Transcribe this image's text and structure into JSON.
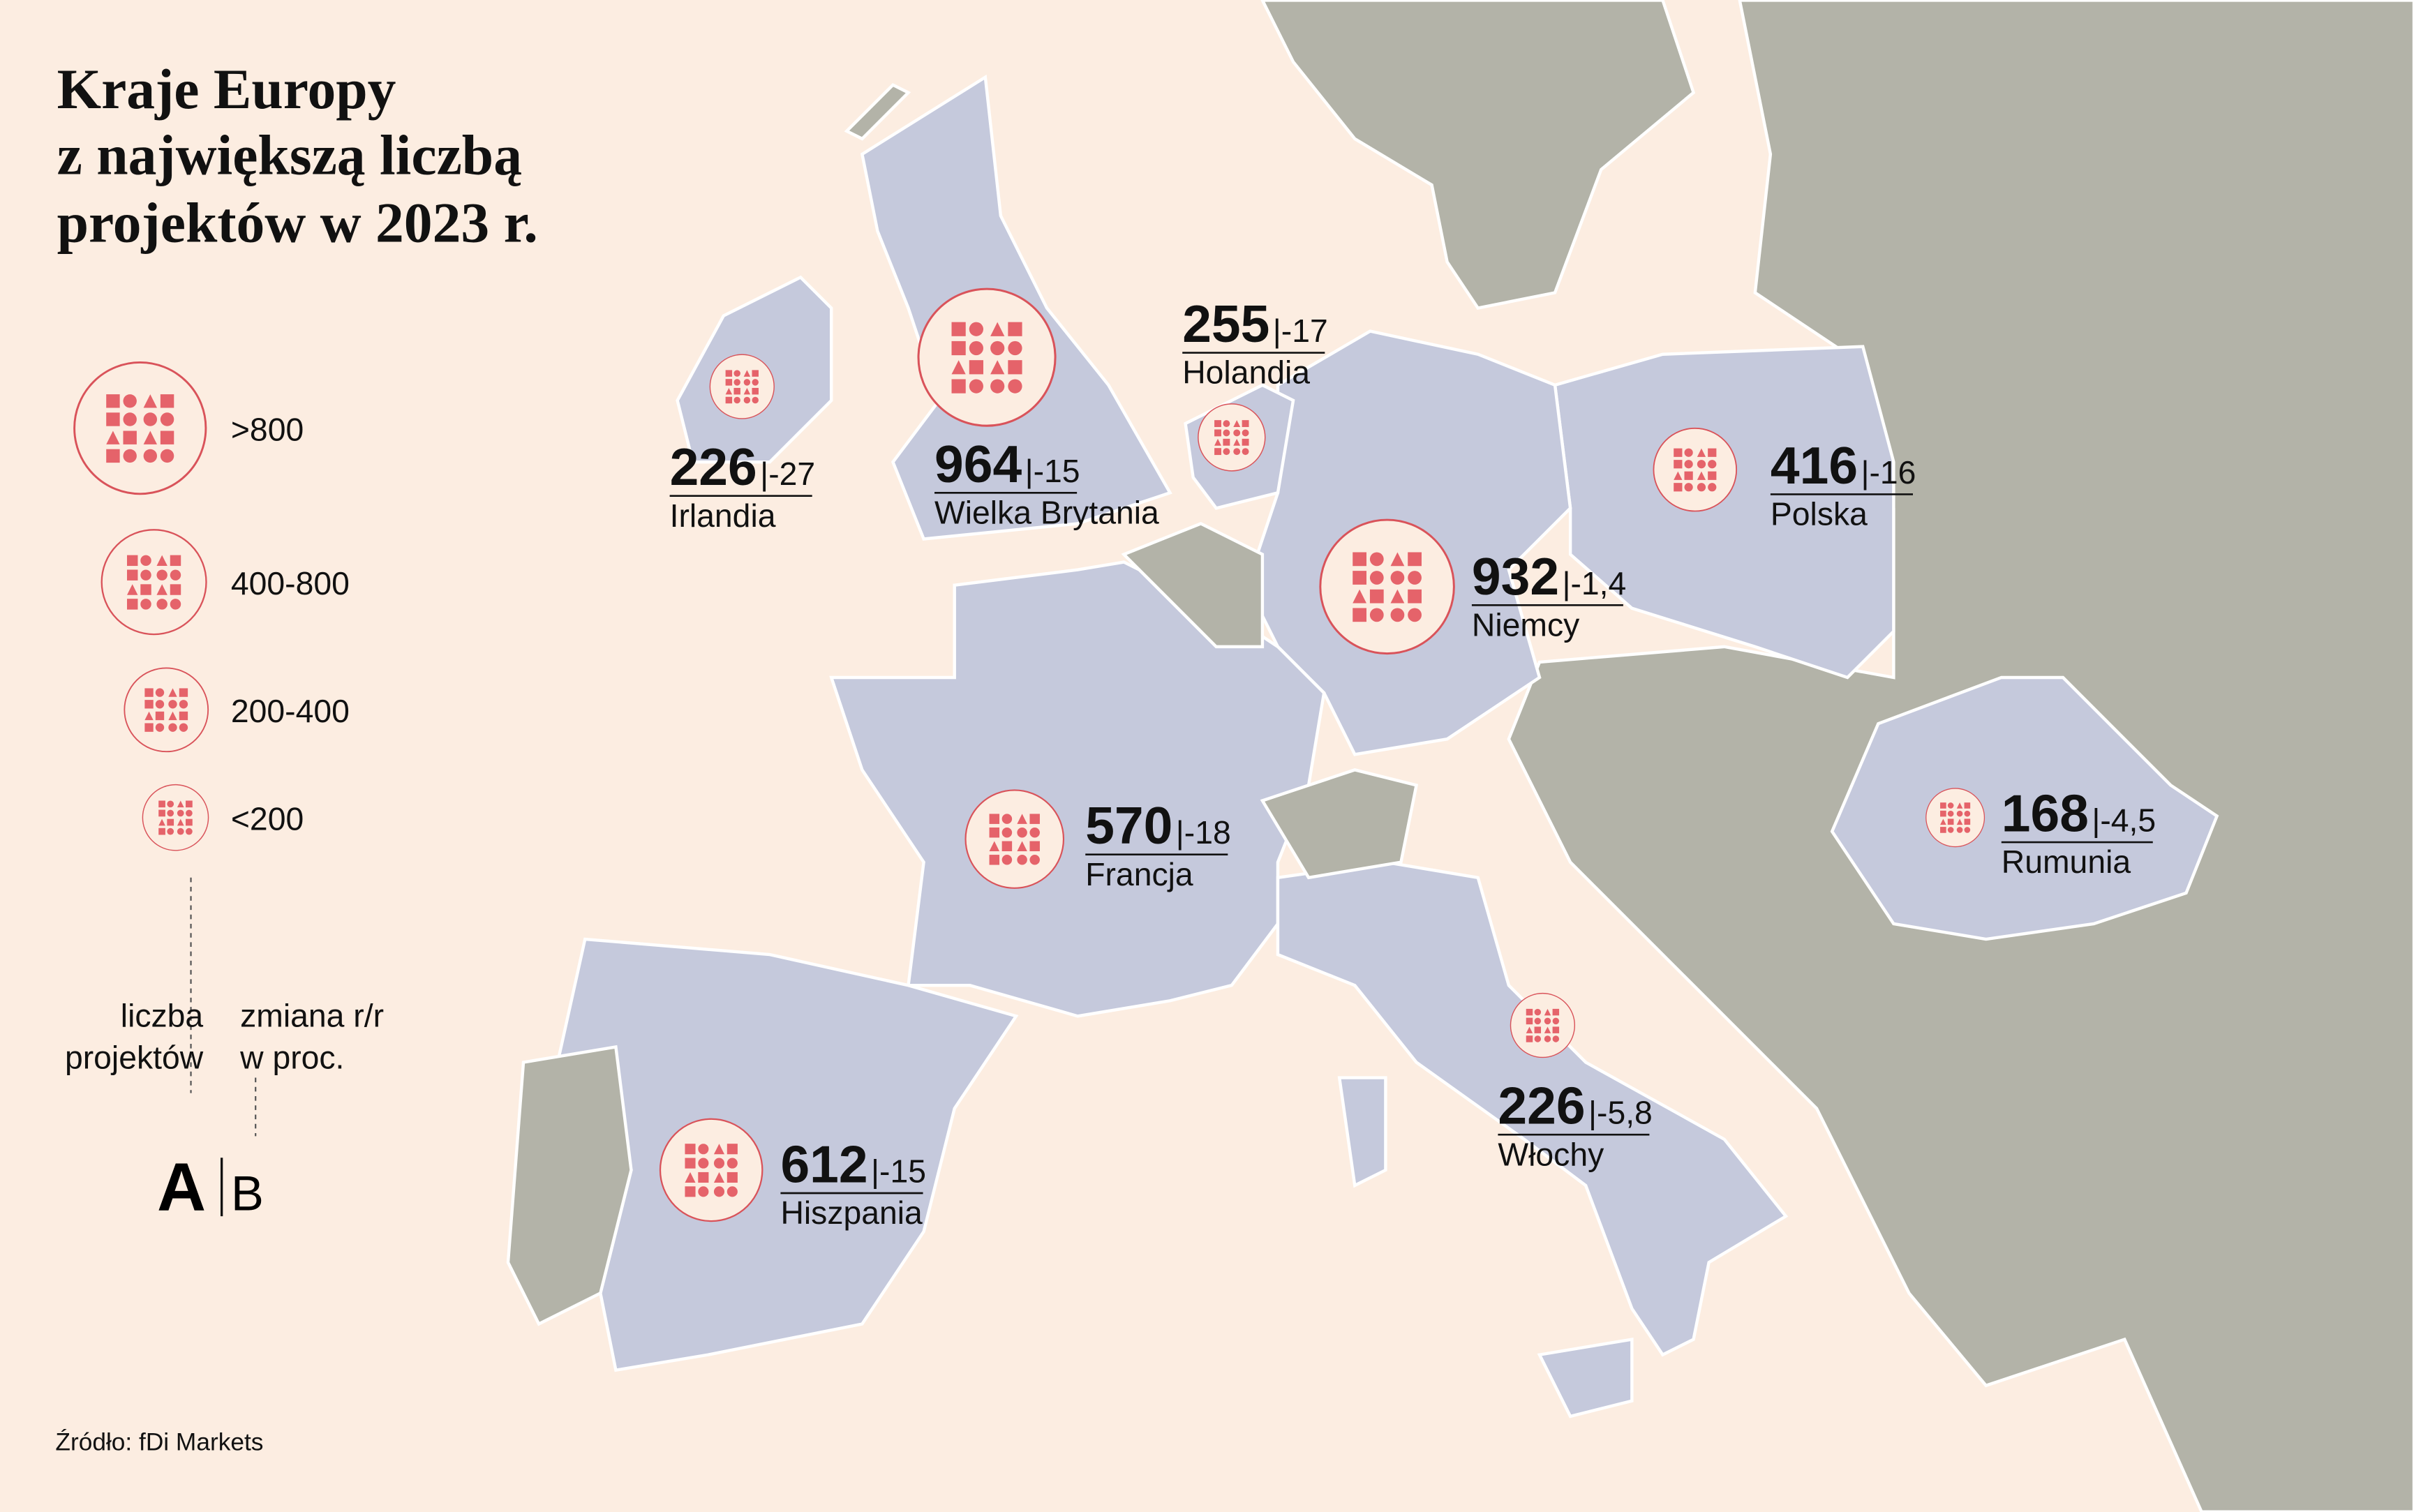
{
  "header": {
    "title": [
      "Kraje Europy",
      "z największą liczbą",
      "projektów w 2023 r."
    ]
  },
  "legend": {
    "items": [
      ">800",
      "400-800",
      "200-400",
      "<200"
    ],
    "axis_a": [
      "liczba",
      "projektów"
    ],
    "axis_b": [
      "zmiana r/r",
      "w proc."
    ],
    "a": "A",
    "b": "B"
  },
  "countries": [
    {
      "name": "Irlandia",
      "projects": 226,
      "change": "-27"
    },
    {
      "name": "Wielka Brytania",
      "projects": 964,
      "change": "-15"
    },
    {
      "name": "Holandia",
      "projects": 255,
      "change": "-17"
    },
    {
      "name": "Polska",
      "projects": 416,
      "change": "-16"
    },
    {
      "name": "Niemcy",
      "projects": 932,
      "change": "-1,4"
    },
    {
      "name": "Francja",
      "projects": 570,
      "change": "-18"
    },
    {
      "name": "Rumunia",
      "projects": 168,
      "change": "-4,5"
    },
    {
      "name": "Włochy",
      "projects": 226,
      "change": "-5,8"
    },
    {
      "name": "Hiszpania",
      "projects": 612,
      "change": "-15"
    }
  ],
  "source": "Źródło: fDi Markets"
}
